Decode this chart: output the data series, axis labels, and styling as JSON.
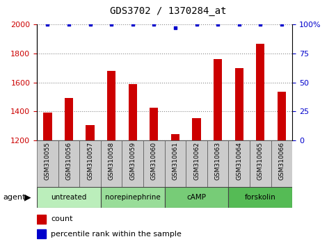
{
  "title": "GDS3702 / 1370284_at",
  "samples": [
    "GSM310055",
    "GSM310056",
    "GSM310057",
    "GSM310058",
    "GSM310059",
    "GSM310060",
    "GSM310061",
    "GSM310062",
    "GSM310063",
    "GSM310064",
    "GSM310065",
    "GSM310066"
  ],
  "bar_values": [
    1390,
    1490,
    1305,
    1680,
    1590,
    1425,
    1240,
    1355,
    1760,
    1700,
    1865,
    1535
  ],
  "percentile_values": [
    100,
    100,
    100,
    100,
    100,
    100,
    97,
    100,
    100,
    100,
    100,
    100
  ],
  "bar_color": "#cc0000",
  "percentile_color": "#0000cc",
  "ylim_left": [
    1200,
    2000
  ],
  "ylim_right": [
    0,
    100
  ],
  "yticks_left": [
    1200,
    1400,
    1600,
    1800,
    2000
  ],
  "yticks_right": [
    0,
    25,
    50,
    75,
    100
  ],
  "ytick_labels_right": [
    "0",
    "25",
    "50",
    "75",
    "100%"
  ],
  "groups": [
    {
      "label": "untreated",
      "start": 0,
      "end": 3,
      "color": "#bbeebb"
    },
    {
      "label": "norepinephrine",
      "start": 3,
      "end": 6,
      "color": "#99dd99"
    },
    {
      "label": "cAMP",
      "start": 6,
      "end": 9,
      "color": "#77cc77"
    },
    {
      "label": "forskolin",
      "start": 9,
      "end": 12,
      "color": "#55bb55"
    }
  ],
  "sample_bg_color": "#cccccc",
  "legend_count_label": "count",
  "legend_percentile_label": "percentile rank within the sample",
  "agent_label": "agent",
  "background_color": "#ffffff",
  "plot_bg_color": "#ffffff",
  "grid_color": "#888888",
  "title_fontsize": 10,
  "tick_fontsize": 8,
  "label_fontsize": 8
}
